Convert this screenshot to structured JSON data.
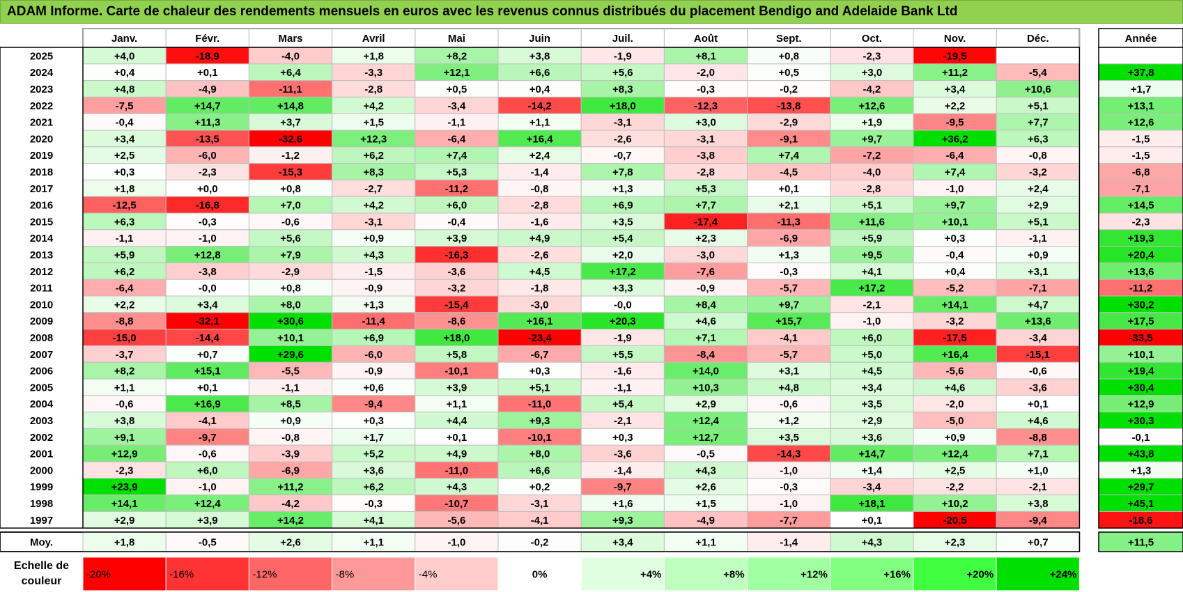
{
  "title": "ADAM Informe. Carte de chaleur des rendements mensuels en euros avec les revenus connus distribués du placement Bendigo and Adelaide Bank Ltd",
  "chart_data": {
    "type": "heatmap",
    "title": "ADAM Informe. Carte de chaleur des rendements mensuels en euros avec les revenus connus distribués du placement Bendigo and Adelaide Bank Ltd",
    "columns": [
      "Janv.",
      "Févr.",
      "Mars",
      "Avril",
      "Mai",
      "Juin",
      "Juil.",
      "Août",
      "Sept.",
      "Oct.",
      "Nov.",
      "Déc."
    ],
    "annual_header": "Année",
    "rows": [
      {
        "year": "2025",
        "values": [
          "+4,0",
          "-18,9",
          "-4,0",
          "+1,8",
          "+8,2",
          "+3,8",
          "-1,9",
          "+8,1",
          "+0,8",
          "-2,3",
          "-19,5",
          ""
        ],
        "annual": ""
      },
      {
        "year": "2024",
        "values": [
          "+0,4",
          "+0,1",
          "+6,4",
          "-3,3",
          "+12,1",
          "+6,6",
          "+5,6",
          "-2,0",
          "+0,5",
          "+3,0",
          "+11,2",
          "-5,4"
        ],
        "annual": "+37,8"
      },
      {
        "year": "2023",
        "values": [
          "+4,8",
          "-4,9",
          "-11,1",
          "-2,8",
          "+0,5",
          "+0,4",
          "+8,3",
          "-0,3",
          "-0,2",
          "-4,2",
          "+3,4",
          "+10,6"
        ],
        "annual": "+1,7"
      },
      {
        "year": "2022",
        "values": [
          "-7,5",
          "+14,7",
          "+14,8",
          "+4,2",
          "-3,4",
          "-14,2",
          "+18,0",
          "-12,3",
          "-13,8",
          "+12,6",
          "+2,2",
          "+5,1"
        ],
        "annual": "+13,1"
      },
      {
        "year": "2021",
        "values": [
          "-0,4",
          "+11,3",
          "+3,7",
          "+1,5",
          "-1,1",
          "+1,1",
          "-3,1",
          "+3,0",
          "-2,9",
          "+1,9",
          "-9,5",
          "+7,7"
        ],
        "annual": "+12,6"
      },
      {
        "year": "2020",
        "values": [
          "+3,4",
          "-13,5",
          "-32,6",
          "+12,3",
          "-6,4",
          "+16,4",
          "-2,6",
          "-3,1",
          "-9,1",
          "+9,7",
          "+36,2",
          "+6,3"
        ],
        "annual": "-1,5"
      },
      {
        "year": "2019",
        "values": [
          "+2,5",
          "-6,0",
          "-1,2",
          "+6,2",
          "+7,4",
          "+2,4",
          "-0,7",
          "-3,8",
          "+7,4",
          "-7,2",
          "-6,4",
          "-0,8"
        ],
        "annual": "-1,5"
      },
      {
        "year": "2018",
        "values": [
          "+0,3",
          "-2,3",
          "-15,3",
          "+8,3",
          "+5,3",
          "-1,4",
          "+7,8",
          "-2,8",
          "-4,5",
          "-4,0",
          "+7,4",
          "-3,2"
        ],
        "annual": "-6,8"
      },
      {
        "year": "2017",
        "values": [
          "+1,8",
          "+0,0",
          "+0,8",
          "-2,7",
          "-11,2",
          "-0,8",
          "+1,3",
          "+5,3",
          "+0,1",
          "-2,8",
          "-1,0",
          "+2,4"
        ],
        "annual": "-7,1"
      },
      {
        "year": "2016",
        "values": [
          "-12,5",
          "-16,8",
          "+7,0",
          "+4,2",
          "+6,0",
          "-2,8",
          "+6,9",
          "+7,7",
          "+2,1",
          "+5,1",
          "+9,7",
          "+2,9"
        ],
        "annual": "+14,5"
      },
      {
        "year": "2015",
        "values": [
          "+6,3",
          "-0,3",
          "-0,6",
          "-3,1",
          "-0,4",
          "-1,6",
          "+3,5",
          "-17,4",
          "-11,3",
          "+11,6",
          "+10,1",
          "+5,1"
        ],
        "annual": "-2,3"
      },
      {
        "year": "2014",
        "values": [
          "-1,1",
          "-1,0",
          "+5,6",
          "+0,9",
          "+3,9",
          "+4,9",
          "+5,4",
          "+2,3",
          "-6,9",
          "+5,9",
          "+0,3",
          "-1,1"
        ],
        "annual": "+19,3"
      },
      {
        "year": "2013",
        "values": [
          "+5,9",
          "+12,8",
          "+7,9",
          "+4,3",
          "-16,3",
          "-2,6",
          "+2,0",
          "-3,0",
          "+1,3",
          "+9,5",
          "-0,4",
          "+0,9"
        ],
        "annual": "+20,4"
      },
      {
        "year": "2012",
        "values": [
          "+6,2",
          "-3,8",
          "-2,9",
          "-1,5",
          "-3,6",
          "+4,5",
          "+17,2",
          "-7,6",
          "-0,3",
          "+4,1",
          "+0,4",
          "+3,1"
        ],
        "annual": "+13,6"
      },
      {
        "year": "2011",
        "values": [
          "-6,4",
          "-0,0",
          "+0,8",
          "-0,9",
          "-3,2",
          "-1,8",
          "+3,3",
          "-0,9",
          "-5,7",
          "+17,2",
          "-5,2",
          "-7,1"
        ],
        "annual": "-11,2"
      },
      {
        "year": "2010",
        "values": [
          "+2,2",
          "+3,4",
          "+8,0",
          "+1,3",
          "-15,4",
          "-3,0",
          "-0,0",
          "+8,4",
          "+9,7",
          "-2,1",
          "+14,1",
          "+4,7"
        ],
        "annual": "+30,2"
      },
      {
        "year": "2009",
        "values": [
          "-8,8",
          "-32,1",
          "+30,6",
          "-11,4",
          "-8,6",
          "+16,1",
          "+20,3",
          "+4,6",
          "+15,7",
          "-1,0",
          "-3,2",
          "+13,6"
        ],
        "annual": "+17,5"
      },
      {
        "year": "2008",
        "values": [
          "-15,0",
          "-14,4",
          "+10,1",
          "+6,9",
          "+18,0",
          "-23,4",
          "-1,9",
          "+7,1",
          "-4,1",
          "+6,0",
          "-17,5",
          "-3,4"
        ],
        "annual": "-33,5"
      },
      {
        "year": "2007",
        "values": [
          "-3,7",
          "+0,7",
          "+29,6",
          "-6,0",
          "+5,8",
          "-6,7",
          "+5,5",
          "-8,4",
          "-5,7",
          "+5,0",
          "+16,4",
          "-15,1"
        ],
        "annual": "+10,1"
      },
      {
        "year": "2006",
        "values": [
          "+8,2",
          "+15,1",
          "-5,5",
          "-0,9",
          "-10,1",
          "+0,3",
          "-1,6",
          "+14,0",
          "+3,1",
          "+4,5",
          "-5,6",
          "-0,6"
        ],
        "annual": "+19,4"
      },
      {
        "year": "2005",
        "values": [
          "+1,1",
          "+0,1",
          "-1,1",
          "+0,6",
          "+3,9",
          "+5,1",
          "-1,1",
          "+10,3",
          "+4,8",
          "+3,4",
          "+4,6",
          "-3,6"
        ],
        "annual": "+30,4"
      },
      {
        "year": "2004",
        "values": [
          "-0,6",
          "+16,9",
          "+8,5",
          "-9,4",
          "+1,1",
          "-11,0",
          "+5,4",
          "+2,9",
          "-0,6",
          "+3,5",
          "-2,0",
          "+0,1"
        ],
        "annual": "+12,9"
      },
      {
        "year": "2003",
        "values": [
          "+3,8",
          "-4,1",
          "+0,9",
          "+0,3",
          "+4,4",
          "+9,3",
          "-2,1",
          "+12,4",
          "+1,2",
          "+2,9",
          "-5,0",
          "+4,6"
        ],
        "annual": "+30,3"
      },
      {
        "year": "2002",
        "values": [
          "+9,1",
          "-9,7",
          "-0,8",
          "+1,7",
          "+0,1",
          "-10,1",
          "+0,3",
          "+12,7",
          "+3,5",
          "+3,6",
          "+0,9",
          "-8,8"
        ],
        "annual": "-0,1"
      },
      {
        "year": "2001",
        "values": [
          "+12,9",
          "-0,6",
          "-3,9",
          "+5,2",
          "+4,9",
          "+8,0",
          "-3,6",
          "-0,5",
          "-14,3",
          "+14,7",
          "+12,4",
          "+7,1"
        ],
        "annual": "+43,8"
      },
      {
        "year": "2000",
        "values": [
          "-2,3",
          "+6,0",
          "-6,9",
          "+3,6",
          "-11,0",
          "+6,6",
          "-1,4",
          "+4,3",
          "-1,0",
          "+1,4",
          "+2,5",
          "+1,0"
        ],
        "annual": "+1,3"
      },
      {
        "year": "1999",
        "values": [
          "+23,9",
          "-1,0",
          "+11,2",
          "+6,2",
          "+4,3",
          "+0,2",
          "-9,7",
          "+2,6",
          "-0,3",
          "-3,4",
          "-2,2",
          "-2,1"
        ],
        "annual": "+29,7"
      },
      {
        "year": "1998",
        "values": [
          "+14,1",
          "+12,4",
          "-4,2",
          "-0,3",
          "-10,7",
          "-3,1",
          "+1,6",
          "+1,5",
          "-1,0",
          "+18,1",
          "+10,2",
          "+3,8"
        ],
        "annual": "+45,1"
      },
      {
        "year": "1997",
        "values": [
          "+2,9",
          "+3,9",
          "+14,2",
          "+4,1",
          "-5,6",
          "-4,1",
          "+9,3",
          "-4,9",
          "-7,7",
          "+0,1",
          "-20,5",
          "-9,4"
        ],
        "annual": "-18,6"
      }
    ],
    "average": {
      "label": "Moy.",
      "values": [
        "+1,8",
        "-0,5",
        "+2,6",
        "+1,1",
        "-1,0",
        "-0,2",
        "+3,4",
        "+1,1",
        "-1,4",
        "+4,3",
        "+2,3",
        "+0,7"
      ],
      "annual": "+11,5"
    },
    "scale": {
      "label_line1": "Echelle de",
      "label_line2": "couleur",
      "steps": [
        {
          "label": "-20%",
          "value": -20,
          "color": "#ff0000"
        },
        {
          "label": "-16%",
          "value": -16,
          "color": "#ff3333"
        },
        {
          "label": "-12%",
          "value": -12,
          "color": "#ff6666"
        },
        {
          "label": "-8%",
          "value": -8,
          "color": "#ff9999"
        },
        {
          "label": "-4%",
          "value": -4,
          "color": "#ffcccc"
        },
        {
          "label": "0%",
          "value": 0,
          "color": "#ffffff"
        },
        {
          "label": "+4%",
          "value": 4,
          "color": "#e0ffe0"
        },
        {
          "label": "+8%",
          "value": 8,
          "color": "#bfffbf"
        },
        {
          "label": "+12%",
          "value": 12,
          "color": "#a0ffa0"
        },
        {
          "label": "+16%",
          "value": 16,
          "color": "#80ff80"
        },
        {
          "label": "+20%",
          "value": 20,
          "color": "#40ff40"
        },
        {
          "label": "+24%",
          "value": 24,
          "color": "#00e000"
        }
      ]
    }
  }
}
